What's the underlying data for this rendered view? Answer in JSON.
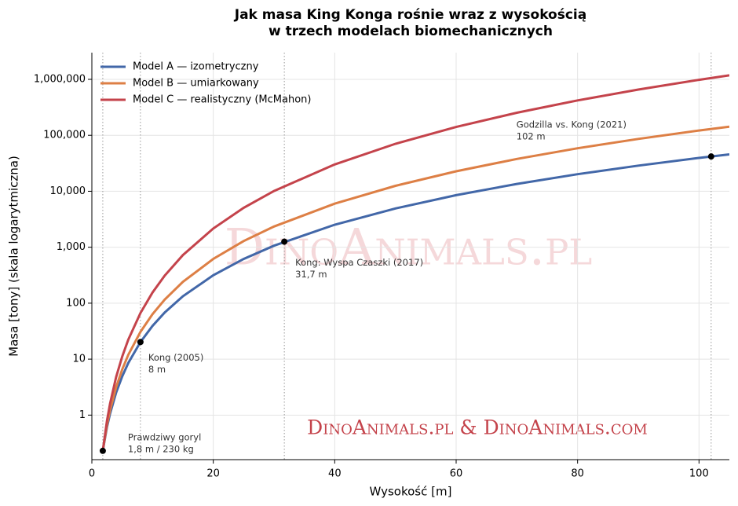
{
  "chart_data": {
    "type": "line",
    "title": "Jak masa King Konga rośnie wraz z wysokością",
    "subtitle": "w trzech modelach biomechanicznych",
    "xlabel": "Wysokość [m]",
    "ylabel": "Masa [tony] (skala logarytmiczna)",
    "watermark": "DinoAnimals.pl",
    "credit": "DinoAnimals.pl & DinoAnimals.com",
    "log_y": true,
    "grid": true,
    "legend": "upper left",
    "x": [
      1.8,
      2.5,
      3,
      4,
      5,
      6,
      8,
      10,
      12,
      15,
      20,
      25,
      30,
      40,
      50,
      60,
      70,
      80,
      90,
      100,
      105
    ],
    "series": [
      {
        "name": "Model A — izometryczny",
        "color": "#4267a8",
        "values": [
          0.23,
          0.616,
          1.065,
          2.524,
          4.93,
          8.52,
          20.2,
          39.4,
          68.2,
          133.1,
          315.5,
          616,
          1065,
          2524,
          4930,
          8519,
          13527,
          20193,
          28750,
          39440,
          45655
        ]
      },
      {
        "name": "Model B — umiarkowany",
        "color": "#dd7f45",
        "values": [
          0.23,
          0.676,
          1.228,
          3.156,
          6.56,
          11.94,
          30.7,
          63.8,
          115.9,
          241,
          619,
          1288,
          2341,
          6014,
          12500,
          22760,
          37740,
          58580,
          86140,
          121700,
          142800
        ]
      },
      {
        "name": "Model C — realistyczny (McMahon)",
        "color": "#c4434b",
        "values": [
          0.23,
          0.801,
          1.602,
          4.78,
          11.17,
          22.3,
          66.6,
          155.5,
          311,
          726,
          2165,
          5056,
          10100,
          30130,
          70500,
          141000,
          253000,
          420000,
          657000,
          980000,
          1182000
        ]
      }
    ],
    "annotations": [
      {
        "x": 1.8,
        "y": 0.23,
        "label": "Prawdziwy goryl",
        "sublabel": "1,8 m / 230 kg"
      },
      {
        "x": 8,
        "y": 20.2,
        "label": "Kong (2005)",
        "sublabel": "8 m"
      },
      {
        "x": 31.7,
        "y": 1256,
        "label": "Kong: Wyspa Czaszki (2017)",
        "sublabel": "31,7 m"
      },
      {
        "x": 102,
        "y": 41850,
        "label": "Godzilla vs. Kong (2021)",
        "sublabel": "102 m"
      }
    ],
    "xlim": [
      0,
      105
    ],
    "ylim": [
      0.16,
      3000000
    ],
    "xticks": [
      0,
      20,
      40,
      60,
      80,
      100
    ],
    "yticks": [
      1,
      10,
      100,
      {
        "value": 1000,
        "label": "1,000"
      },
      {
        "value": 10000,
        "label": "10,000"
      },
      {
        "value": 100000,
        "label": "100,000"
      },
      {
        "value": 1000000,
        "label": "1,000,000"
      }
    ]
  }
}
